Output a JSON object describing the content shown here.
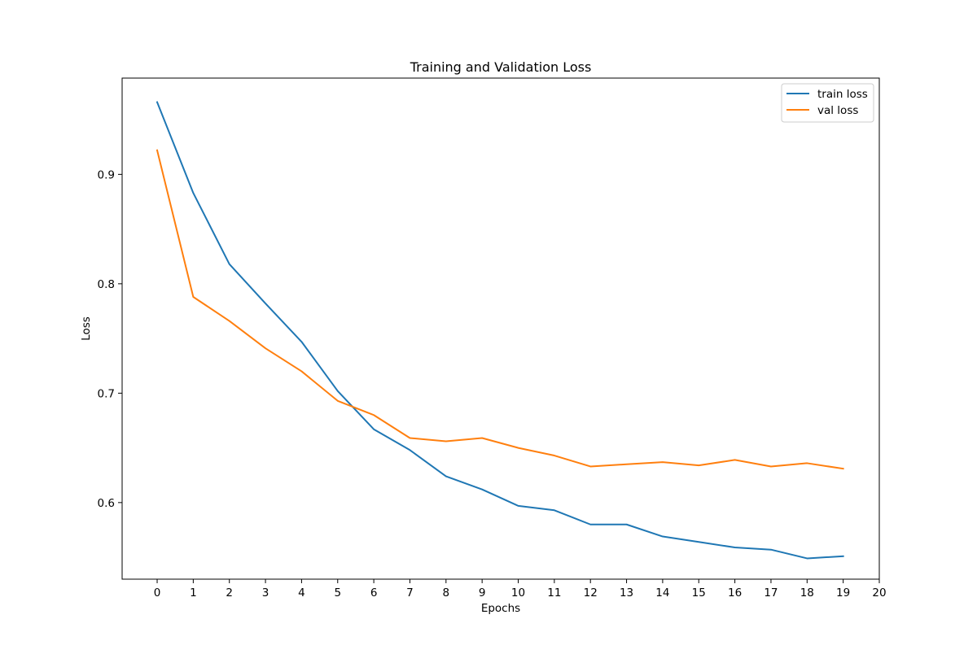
{
  "chart_data": {
    "type": "line",
    "title": "Training and Validation Loss",
    "xlabel": "Epochs",
    "ylabel": "Loss",
    "xlim": [
      -0.97,
      20.0
    ],
    "ylim": [
      0.53,
      0.988
    ],
    "xticks": [
      0,
      1,
      2,
      3,
      4,
      5,
      6,
      7,
      8,
      9,
      10,
      11,
      12,
      13,
      14,
      15,
      16,
      17,
      18,
      19,
      20
    ],
    "yticks": [
      0.6,
      0.7,
      0.8,
      0.9
    ],
    "grid": false,
    "legend_position": "top-right",
    "x": [
      0,
      1,
      2,
      3,
      4,
      5,
      6,
      7,
      8,
      9,
      10,
      11,
      12,
      13,
      14,
      15,
      16,
      17,
      18,
      19
    ],
    "series": [
      {
        "name": "train loss",
        "color": "#1f77b4",
        "values": [
          0.966,
          0.883,
          0.818,
          0.782,
          0.747,
          0.702,
          0.667,
          0.648,
          0.624,
          0.612,
          0.597,
          0.593,
          0.58,
          0.58,
          0.569,
          0.564,
          0.559,
          0.557,
          0.549,
          0.551
        ]
      },
      {
        "name": "val loss",
        "color": "#ff7f0e",
        "values": [
          0.922,
          0.788,
          0.766,
          0.741,
          0.72,
          0.693,
          0.68,
          0.659,
          0.656,
          0.659,
          0.65,
          0.643,
          0.633,
          0.635,
          0.637,
          0.634,
          0.639,
          0.633,
          0.636,
          0.631
        ]
      }
    ]
  }
}
